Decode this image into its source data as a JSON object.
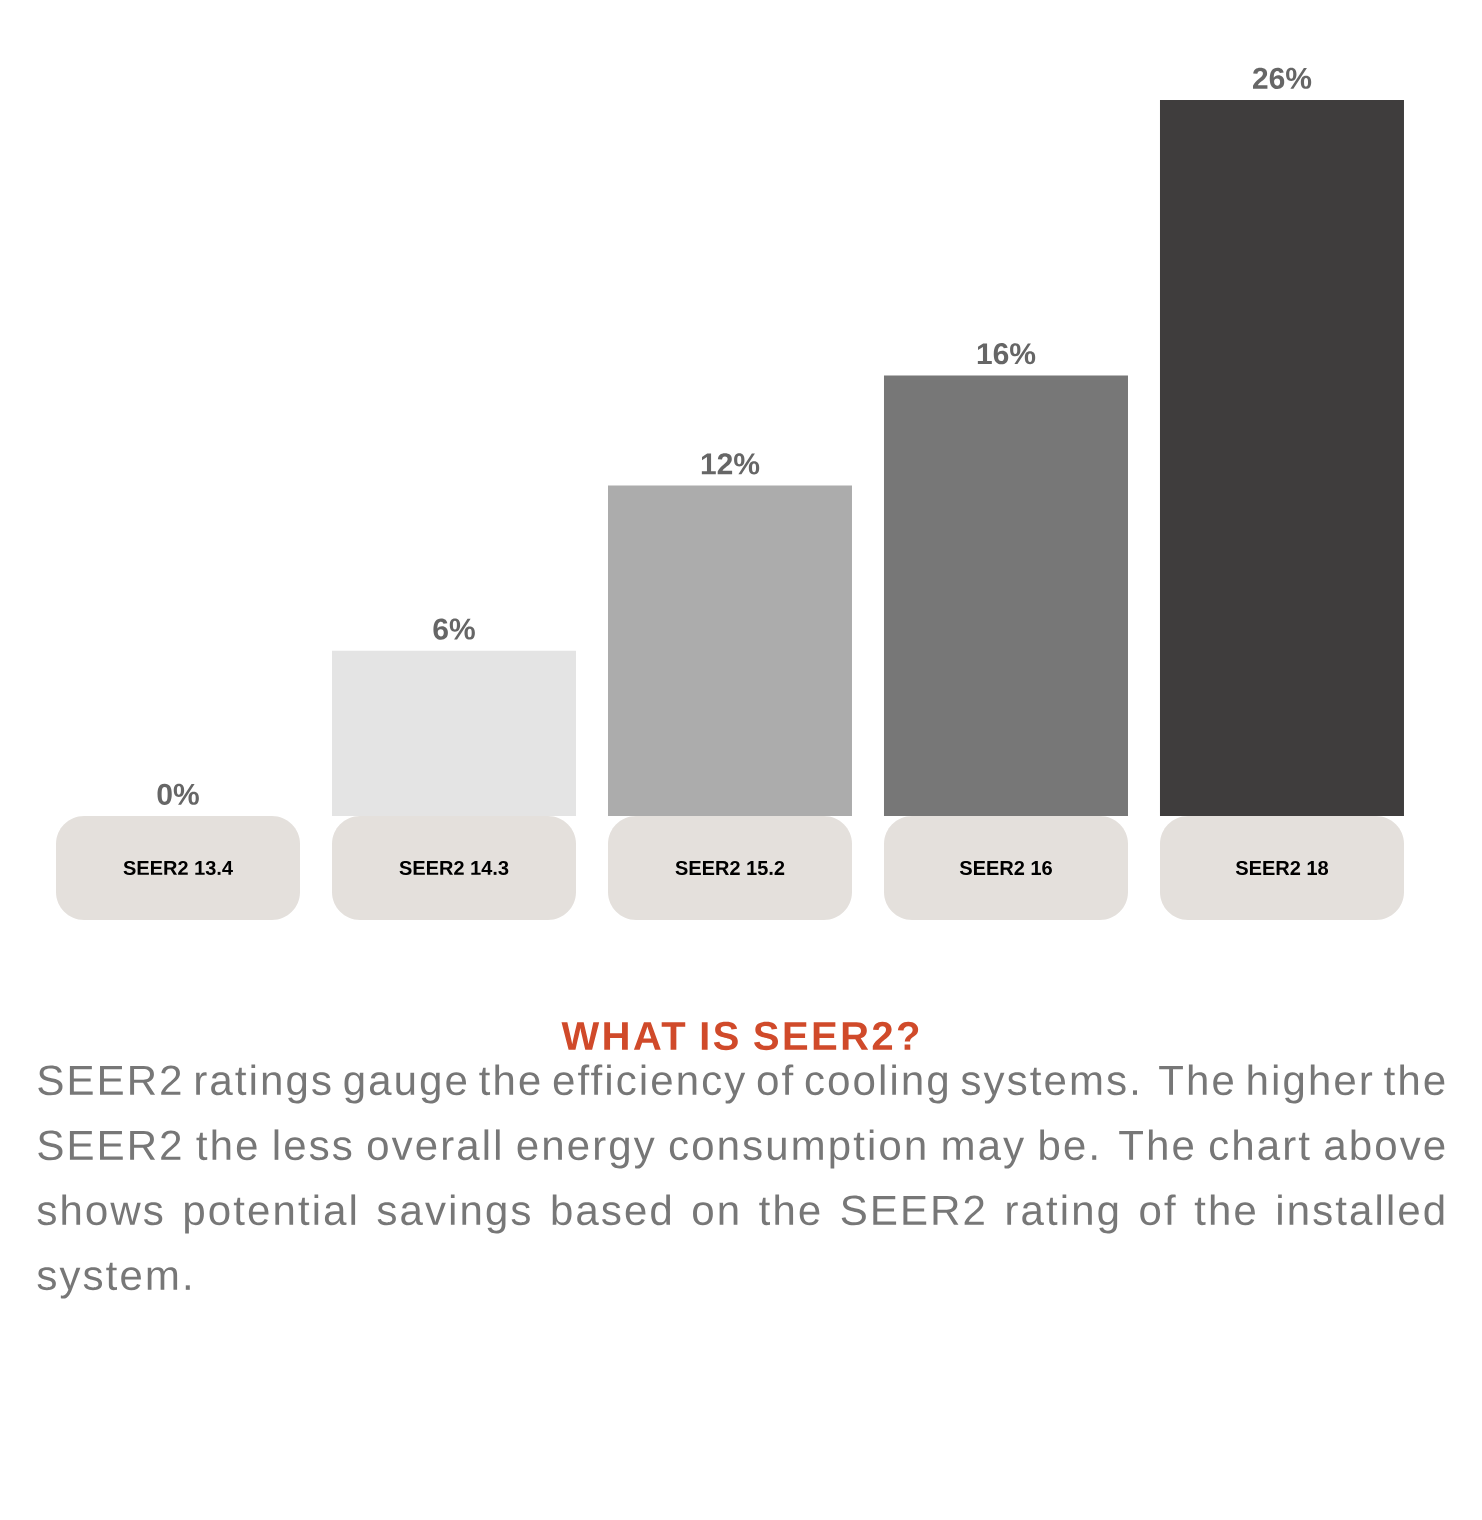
{
  "chart_data": {
    "type": "bar",
    "title": "WHAT IS SEER2?",
    "categories": [
      "SEER2 13.4",
      "SEER2 14.3",
      "SEER2 15.2",
      "SEER2 16",
      "SEER2 18"
    ],
    "values": [
      0,
      6,
      12,
      16,
      26
    ],
    "value_labels": [
      "0%",
      "6%",
      "12%",
      "16%",
      "26%"
    ],
    "colors": [
      "#ececec",
      "#e4e4e4",
      "#acacac",
      "#777777",
      "#3f3d3d"
    ],
    "annotations": [
      "SEER2 ratings gauge the efficiency of cooling systems. The higher the SEER2 the less overall energy consumption may be. The chart above shows potential savings based on the SEER2 rating of the installed system."
    ]
  }
}
